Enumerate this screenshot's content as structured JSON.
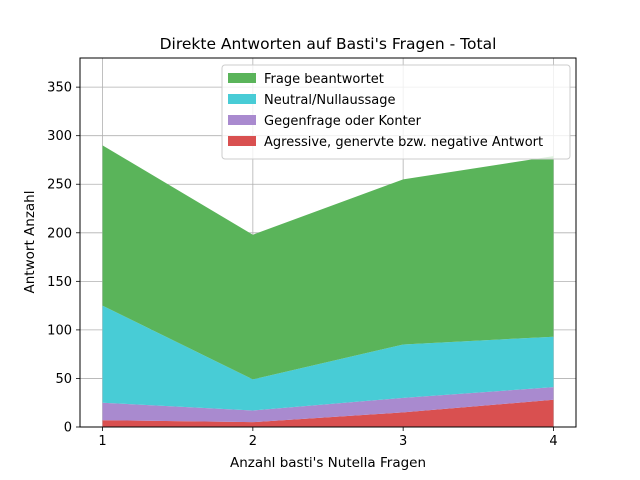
{
  "chart_data": {
    "type": "area",
    "stacked": true,
    "title": "Direkte Antworten auf Basti's Fragen - Total",
    "xlabel": "Anzahl basti's Nutella Fragen",
    "ylabel": "Antwort Anzahl",
    "x": [
      1,
      2,
      3,
      4
    ],
    "xlim": [
      0.85,
      4.15
    ],
    "ylim": [
      0,
      380
    ],
    "xticks": [
      1,
      2,
      3,
      4
    ],
    "yticks": [
      0,
      50,
      100,
      150,
      200,
      250,
      300,
      350
    ],
    "grid": true,
    "legend_position": "upper-right",
    "series": [
      {
        "name": "Agressive, genervte bzw. negative Antwort",
        "color": "#d95050",
        "values": [
          7,
          5,
          15,
          28
        ]
      },
      {
        "name": "Gegenfrage oder Konter",
        "color": "#a98acf",
        "values": [
          18,
          12,
          15,
          13
        ]
      },
      {
        "name": "Neutral/Nullaussage",
        "color": "#48ccd6",
        "values": [
          100,
          32,
          55,
          52
        ]
      },
      {
        "name": "Frage beantwortet",
        "color": "#5ab45a",
        "values": [
          165,
          149,
          170,
          186
        ]
      }
    ]
  }
}
